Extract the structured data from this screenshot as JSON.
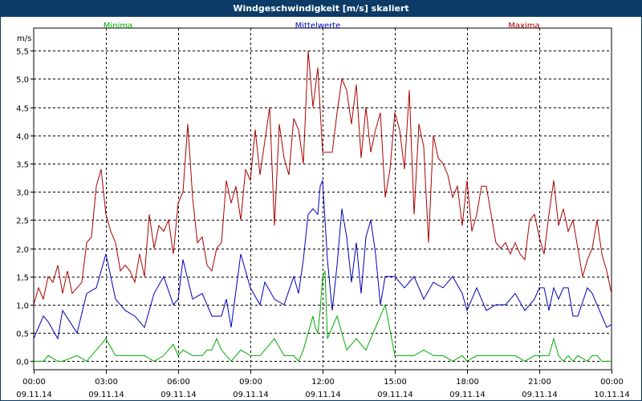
{
  "window": {
    "title": "Windgeschwindigkeit [m/s] skaliert"
  },
  "chart_data": {
    "type": "line",
    "title": "Windgeschwindigkeit [m/s] skaliert",
    "ylabel": "m/s",
    "xlabel": "",
    "ylim": [
      -0.15,
      5.9
    ],
    "xlim": [
      0,
      240
    ],
    "grid": true,
    "yticks": [
      0,
      0.5,
      1,
      1.5,
      2,
      2.5,
      3,
      3.5,
      4,
      4.5,
      5,
      5.5
    ],
    "ytick_labels": [
      "0,0",
      "0,5",
      "1,0",
      "1,5",
      "2,0",
      "2,5",
      "3,0",
      "3,5",
      "4,0",
      "4,5",
      "5,0",
      "5,5"
    ],
    "xticks": [
      0,
      30,
      60,
      90,
      120,
      150,
      180,
      210,
      240
    ],
    "xtick_times": [
      "00:00",
      "03:00",
      "06:00",
      "09:00",
      "12:00",
      "15:00",
      "18:00",
      "21:00",
      "00:00"
    ],
    "xtick_dates": [
      "09.11.14",
      "09.11.14",
      "09.11.14",
      "09.11.14",
      "09.11.14",
      "09.11.14",
      "09.11.14",
      "09.11.14",
      "10.11.14"
    ],
    "series": [
      {
        "name": "Minima",
        "color": "#00aa00",
        "legend_position": "left",
        "x": [
          0,
          4,
          6,
          10,
          12,
          18,
          22,
          26,
          30,
          34,
          38,
          42,
          46,
          50,
          54,
          58,
          60,
          62,
          66,
          70,
          72,
          74,
          76,
          78,
          82,
          86,
          90,
          94,
          96,
          100,
          104,
          108,
          110,
          112,
          116,
          117,
          118,
          119,
          120,
          121,
          122,
          126,
          130,
          134,
          138,
          142,
          146,
          150,
          154,
          158,
          162,
          166,
          170,
          174,
          178,
          180,
          184,
          188,
          192,
          196,
          200,
          204,
          208,
          210,
          212,
          214,
          216,
          218,
          220,
          222,
          224,
          226,
          230,
          232,
          234,
          236,
          240
        ],
        "y": [
          0,
          0,
          0.1,
          0,
          0,
          0.1,
          0,
          0.2,
          0.4,
          0.1,
          0.1,
          0.1,
          0.1,
          0,
          0.1,
          0.3,
          0.1,
          0.2,
          0.1,
          0.1,
          0.2,
          0.2,
          0.4,
          0.2,
          0,
          0.2,
          0.1,
          0.1,
          0.2,
          0.4,
          0.1,
          0.1,
          0,
          0.2,
          0.8,
          0.6,
          0.5,
          0.9,
          1.5,
          1.6,
          0.4,
          0.8,
          0.2,
          0.4,
          0.2,
          0.6,
          1,
          0.1,
          0.1,
          0.1,
          0.2,
          0.1,
          0.1,
          0,
          0.1,
          0,
          0.1,
          0.1,
          0.1,
          0.1,
          0.1,
          0,
          0.1,
          0.1,
          0.1,
          0.1,
          0.4,
          0.1,
          0,
          0.1,
          0,
          0.1,
          0,
          0.1,
          0.1,
          0,
          0
        ]
      },
      {
        "name": "Mittelwerte",
        "color": "#0000bb",
        "legend_position": "center",
        "x": [
          0,
          4,
          6,
          10,
          12,
          18,
          22,
          26,
          30,
          34,
          38,
          42,
          46,
          50,
          54,
          58,
          60,
          62,
          66,
          70,
          74,
          78,
          80,
          82,
          86,
          90,
          94,
          96,
          100,
          104,
          108,
          110,
          112,
          114,
          116,
          118,
          119,
          120,
          122,
          124,
          126,
          128,
          130,
          132,
          134,
          136,
          138,
          140,
          142,
          144,
          146,
          150,
          154,
          158,
          162,
          166,
          170,
          174,
          178,
          180,
          184,
          188,
          192,
          196,
          200,
          204,
          208,
          210,
          212,
          214,
          216,
          218,
          220,
          222,
          224,
          226,
          230,
          232,
          234,
          236,
          238,
          240
        ],
        "y": [
          0.4,
          0.8,
          0.7,
          0.4,
          0.9,
          0.5,
          1.2,
          1.3,
          1.9,
          1.1,
          0.9,
          0.8,
          0.6,
          1.2,
          1.5,
          1,
          1.1,
          1.8,
          1.1,
          1.2,
          0.8,
          0.8,
          1.1,
          0.6,
          1.9,
          1.3,
          1,
          1.4,
          1.1,
          1,
          1.5,
          1.2,
          1.8,
          2.6,
          2.7,
          2.6,
          3.1,
          3.2,
          1.8,
          0.9,
          1.7,
          2.7,
          2.2,
          1.4,
          2.1,
          1.2,
          2.2,
          2.5,
          1.9,
          1,
          1.5,
          1.5,
          1.3,
          1.5,
          1.1,
          1.4,
          1.3,
          1.5,
          1.2,
          0.9,
          1.3,
          0.9,
          1,
          1,
          1.2,
          0.9,
          1.1,
          1.3,
          1.3,
          0.9,
          1.3,
          1.1,
          1.3,
          1.3,
          0.8,
          0.8,
          1.3,
          1.2,
          1,
          0.8,
          0.6,
          0.65
        ]
      },
      {
        "name": "Maxima",
        "color": "#aa0000",
        "legend_position": "right",
        "x": [
          0,
          2,
          4,
          6,
          8,
          10,
          12,
          14,
          16,
          18,
          20,
          22,
          24,
          26,
          28,
          30,
          32,
          34,
          36,
          38,
          40,
          42,
          44,
          46,
          48,
          50,
          52,
          54,
          56,
          58,
          60,
          62,
          64,
          66,
          68,
          70,
          72,
          74,
          76,
          78,
          80,
          82,
          84,
          86,
          88,
          90,
          92,
          94,
          96,
          98,
          100,
          102,
          104,
          106,
          108,
          110,
          112,
          114,
          116,
          118,
          120,
          122,
          124,
          126,
          128,
          130,
          132,
          134,
          136,
          138,
          140,
          142,
          144,
          146,
          148,
          150,
          152,
          154,
          156,
          158,
          160,
          162,
          164,
          166,
          168,
          170,
          172,
          174,
          176,
          178,
          180,
          182,
          184,
          186,
          188,
          190,
          192,
          194,
          196,
          198,
          200,
          202,
          204,
          206,
          208,
          210,
          212,
          214,
          216,
          218,
          220,
          222,
          224,
          226,
          228,
          230,
          232,
          234,
          236,
          238,
          240
        ],
        "y": [
          1,
          1.3,
          1.1,
          1.5,
          1.4,
          1.7,
          1.2,
          1.6,
          1.2,
          1.3,
          1.4,
          2.1,
          2.2,
          3.1,
          3.4,
          2.6,
          2.3,
          2.1,
          1.6,
          1.7,
          1.6,
          1.4,
          1.9,
          1.5,
          2.6,
          2,
          2.4,
          2.3,
          2.5,
          1.9,
          2.8,
          3,
          4.2,
          2.9,
          2.1,
          2.2,
          1.7,
          1.6,
          2,
          2.1,
          3.2,
          2.8,
          3.1,
          2.5,
          3.4,
          3.2,
          4.1,
          3.3,
          3.9,
          4.5,
          2.4,
          4.2,
          3.6,
          3.3,
          4.3,
          4.1,
          3.5,
          5.5,
          4.5,
          5.2,
          3.7,
          3.7,
          3.7,
          4.4,
          5,
          4.8,
          4.2,
          4.9,
          3.6,
          4.5,
          3.7,
          4.1,
          4.4,
          2.9,
          3.4,
          4.4,
          4.1,
          3.4,
          4.8,
          2.6,
          4.2,
          3.8,
          2.1,
          4,
          3.6,
          3.5,
          3.3,
          2.9,
          3.1,
          2.4,
          3.2,
          2.3,
          2.6,
          3.1,
          3.1,
          2.6,
          2.1,
          2,
          2.1,
          1.9,
          2.1,
          1.9,
          1.8,
          2.5,
          2.6,
          2.2,
          1.9,
          2.6,
          3.2,
          2.4,
          2.7,
          2.3,
          2.5,
          2,
          1.5,
          1.8,
          2,
          2.5,
          1.9,
          1.6,
          1.2
        ]
      }
    ]
  }
}
